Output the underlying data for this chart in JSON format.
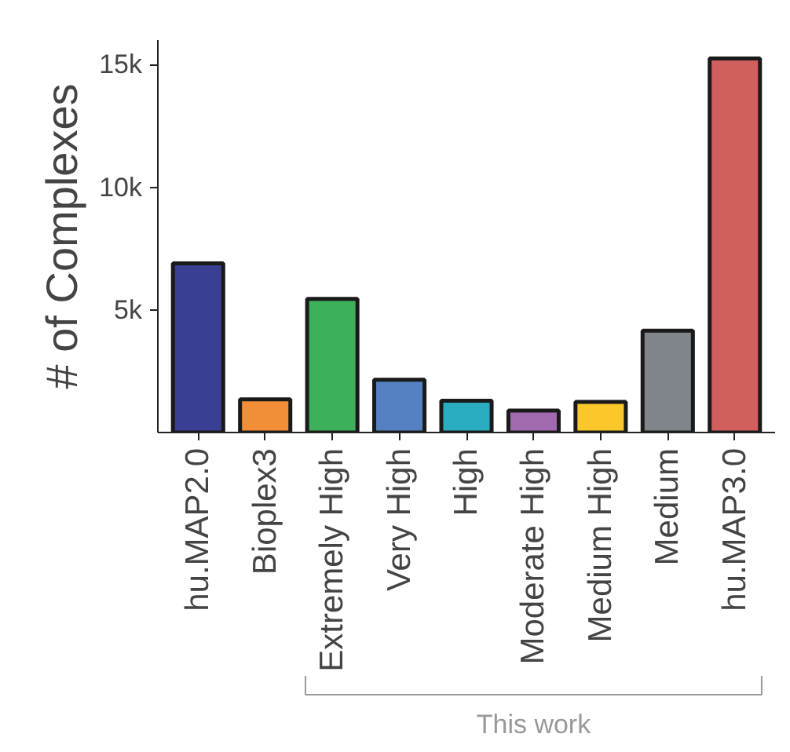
{
  "chart_data": {
    "type": "bar",
    "ylabel": "# of Complexes",
    "categories": [
      "hu.MAP2.0",
      "Bioplex3",
      "Extremely High",
      "Very High",
      "High",
      "Moderate High",
      "Medium High",
      "Medium",
      "hu.MAP3.0"
    ],
    "values": [
      6900,
      1350,
      5450,
      2150,
      1300,
      900,
      1250,
      4150,
      15250
    ],
    "colors": [
      "#3a3f94",
      "#f28e35",
      "#3cb05a",
      "#5580c1",
      "#2aacc1",
      "#a26aae",
      "#fcc72b",
      "#7f858b",
      "#d05f5e"
    ],
    "ylim": [
      0,
      16000
    ],
    "yticks": [
      {
        "value": 5000,
        "label": "5k"
      },
      {
        "value": 10000,
        "label": "10k"
      },
      {
        "value": 15000,
        "label": "15k"
      }
    ],
    "grid": false,
    "annotations": [
      "This work"
    ]
  }
}
